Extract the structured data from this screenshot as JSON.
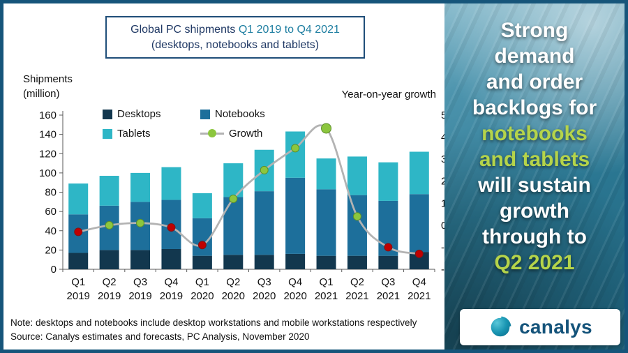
{
  "title": {
    "prefix": "Global PC shipments ",
    "highlight": "Q1 2019 to Q4 2021",
    "subtitle": "(desktops, notebooks and tablets)"
  },
  "axes": {
    "left_label_line1": "Shipments",
    "left_label_line2": "(million)",
    "right_label": "Year-on-year growth"
  },
  "legend": [
    {
      "label": "Desktops",
      "color": "#12374e"
    },
    {
      "label": "Notebooks",
      "color": "#1d6f9b"
    },
    {
      "label": "Tablets",
      "color": "#2eb6c6"
    },
    {
      "label": "Growth",
      "color": "#b3b3b3",
      "marker": "#8cc63e"
    }
  ],
  "chart_data": {
    "type": "bar+line",
    "categories": [
      "Q1 2019",
      "Q2 2019",
      "Q3 2019",
      "Q4 2019",
      "Q1 2020",
      "Q2 2020",
      "Q3 2020",
      "Q4 2020",
      "Q1 2021",
      "Q2 2021",
      "Q3 2021",
      "Q4 2021"
    ],
    "series": [
      {
        "name": "Desktops",
        "color": "#12374e",
        "values": [
          17,
          20,
          20,
          21,
          14,
          15,
          15,
          16,
          14,
          14,
          14,
          18
        ]
      },
      {
        "name": "Notebooks",
        "color": "#1d6f9b",
        "values": [
          40,
          46,
          50,
          51,
          39,
          60,
          66,
          79,
          69,
          63,
          57,
          60
        ]
      },
      {
        "name": "Tablets",
        "color": "#2eb6c6",
        "values": [
          32,
          31,
          30,
          34,
          26,
          35,
          43,
          48,
          32,
          40,
          40,
          44
        ]
      }
    ],
    "growth": {
      "name": "Growth",
      "values": [
        -3,
        0,
        1,
        -1,
        -9,
        12,
        25,
        35,
        44,
        4,
        -10,
        -13
      ],
      "line_color": "#b3b3b3",
      "positive_marker": "#8cc63e",
      "negative_marker": "#c00000"
    },
    "left_axis": {
      "min": 0,
      "max": 160,
      "step": 20
    },
    "right_axis": {
      "min": -20,
      "max": 50,
      "step": 10,
      "suffix": "%"
    },
    "grid": false,
    "legend_position": "top-left"
  },
  "notes": {
    "line1": "Note: desktops and notebooks include desktop workstations and mobile workstations respectively",
    "line2": "Source: Canalys estimates and forecasts, PC Analysis, November 2020"
  },
  "sidebar": {
    "lines": [
      {
        "text": "Strong",
        "color": "#ffffff"
      },
      {
        "text": "demand",
        "color": "#ffffff"
      },
      {
        "text": "and order",
        "color": "#ffffff"
      },
      {
        "text": "backlogs for",
        "color": "#ffffff"
      },
      {
        "text": "notebooks",
        "color": "#b5d44a"
      },
      {
        "text": "and tablets",
        "color": "#b5d44a"
      },
      {
        "text": "will sustain",
        "color": "#ffffff"
      },
      {
        "text": "growth",
        "color": "#ffffff"
      },
      {
        "text": "through to",
        "color": "#ffffff"
      },
      {
        "text": "Q2 2021",
        "color": "#b5d44a"
      }
    ],
    "logo_text": "canalys"
  }
}
